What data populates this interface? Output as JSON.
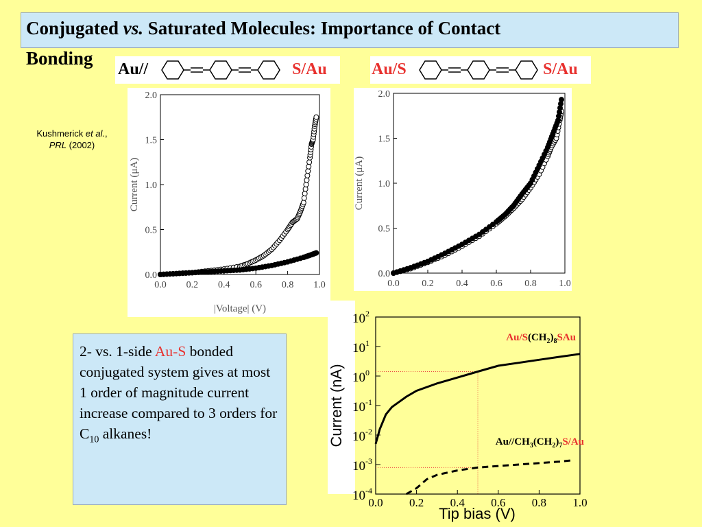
{
  "title": {
    "line1": "Conjugated  vs. Saturated Molecules: Importance of Contact",
    "line1_pre": "Conjugated ",
    "line1_em": "vs.",
    "line1_post": " Saturated Molecules: Importance of Contact",
    "line2": "Bonding"
  },
  "molecules": {
    "left": {
      "left_label": "Au//",
      "right_label": "S/Au"
    },
    "right": {
      "left_label": "Au/S",
      "right_label": "S/Au"
    }
  },
  "citation": {
    "authors_pre": "Kushmerick ",
    "authors_em1": "et al.",
    "sep": ", ",
    "journal": "PRL",
    "year": " (2002)"
  },
  "text_box": {
    "line_pre": "2- vs. 1-side ",
    "highlight": "Au-S",
    "rest": "bonded conjugated system gives at most 1 order of magnitude current increase compared to 3 orders for C",
    "sub": "10",
    "tail": " alkanes!"
  },
  "colors": {
    "background": "#ffff99",
    "title_box": "#cce8f7",
    "accent_red": "#e8312e"
  },
  "chart_data": [
    {
      "type": "scatter",
      "title": "",
      "xlabel": "|Voltage| (V)",
      "ylabel": "Current (μA)",
      "xlim": [
        0,
        1.0
      ],
      "ylim": [
        0,
        2.0
      ],
      "xticks": [
        "0.0",
        "0.2",
        "0.4",
        "0.6",
        "0.8",
        "1.0"
      ],
      "yticks": [
        "0.0",
        "0.5",
        "1.0",
        "1.5",
        "2.0"
      ],
      "series": [
        {
          "marker": "open",
          "x": [
            0.0,
            0.1,
            0.2,
            0.3,
            0.4,
            0.5,
            0.55,
            0.6,
            0.65,
            0.7,
            0.75,
            0.8,
            0.83,
            0.86,
            0.88,
            0.9,
            0.92,
            0.94,
            0.95,
            0.96,
            0.97,
            0.98
          ],
          "y": [
            0.0,
            0.01,
            0.02,
            0.04,
            0.06,
            0.09,
            0.12,
            0.16,
            0.21,
            0.28,
            0.38,
            0.5,
            0.58,
            0.62,
            0.7,
            0.8,
            1.05,
            1.3,
            1.45,
            1.5,
            1.65,
            1.75
          ]
        },
        {
          "marker": "filled",
          "x": [
            0.0,
            0.1,
            0.2,
            0.3,
            0.4,
            0.5,
            0.6,
            0.7,
            0.8,
            0.9,
            0.95,
            0.98
          ],
          "y": [
            0.0,
            0.01,
            0.02,
            0.03,
            0.04,
            0.05,
            0.07,
            0.1,
            0.14,
            0.19,
            0.22,
            0.24
          ]
        }
      ]
    },
    {
      "type": "scatter",
      "title": "",
      "xlabel": "",
      "ylabel": "Current (μA)",
      "xlim": [
        0,
        1.0
      ],
      "ylim": [
        0,
        2.0
      ],
      "xticks": [
        "0.0",
        "0.2",
        "0.4",
        "0.6",
        "0.8",
        "1.0"
      ],
      "yticks": [
        "0.0",
        "0.5",
        "1.0",
        "1.5",
        "2.0"
      ],
      "series": [
        {
          "marker": "open",
          "x": [
            0.0,
            0.1,
            0.2,
            0.3,
            0.4,
            0.5,
            0.6,
            0.65,
            0.7,
            0.75,
            0.8,
            0.85,
            0.9,
            0.92,
            0.95,
            0.97,
            0.98
          ],
          "y": [
            0.0,
            0.05,
            0.12,
            0.2,
            0.3,
            0.41,
            0.55,
            0.63,
            0.72,
            0.82,
            0.95,
            1.1,
            1.3,
            1.4,
            1.5,
            1.7,
            1.8
          ]
        },
        {
          "marker": "filled",
          "x": [
            0.0,
            0.1,
            0.2,
            0.3,
            0.4,
            0.5,
            0.6,
            0.65,
            0.7,
            0.75,
            0.8,
            0.85,
            0.9,
            0.93,
            0.96,
            0.98
          ],
          "y": [
            0.0,
            0.06,
            0.13,
            0.22,
            0.32,
            0.43,
            0.57,
            0.65,
            0.75,
            0.88,
            1.0,
            1.2,
            1.4,
            1.55,
            1.7,
            1.93
          ]
        }
      ]
    },
    {
      "type": "line",
      "title": "",
      "xlabel": "Tip bias (V)",
      "ylabel": "Current (nA)",
      "xlim": [
        0,
        1.0
      ],
      "ylim_log10": [
        -4,
        2
      ],
      "yscale": "log",
      "xticks": [
        "0.0",
        "0.2",
        "0.4",
        "0.6",
        "0.8",
        "1.0"
      ],
      "yticks_exp": [
        "2",
        "1",
        "0",
        "-1",
        "-2",
        "-3",
        "-4"
      ],
      "series": [
        {
          "name": "Au/S(CH2)8SAu",
          "name_parts": {
            "a": "Au/S",
            "b": "(CH",
            "b_sub": "2",
            "c": ")",
            "c_sub": "8",
            "d": "SAu"
          },
          "style": "solid",
          "x": [
            0.0,
            0.02,
            0.05,
            0.08,
            0.1,
            0.15,
            0.2,
            0.3,
            0.4,
            0.5,
            0.6,
            0.7,
            0.8,
            0.9,
            1.0
          ],
          "y": [
            -2.3,
            -1.8,
            -1.3,
            -1.05,
            -0.95,
            -0.7,
            -0.5,
            -0.25,
            -0.05,
            0.15,
            0.35,
            0.45,
            0.55,
            0.65,
            0.75
          ]
        },
        {
          "name": "Au//CH3(CH2)7S/Au",
          "name_parts": {
            "a": "Au//CH",
            "a_sub": "3",
            "b": "(CH",
            "b_sub": "2",
            "c": ")",
            "c_sub": "7",
            "d": "S/Au"
          },
          "style": "dashed",
          "x": [
            0.15,
            0.2,
            0.25,
            0.3,
            0.4,
            0.5,
            0.6,
            0.7,
            0.8,
            0.9,
            0.97
          ],
          "y": [
            -4.0,
            -3.8,
            -3.5,
            -3.35,
            -3.2,
            -3.1,
            -3.05,
            -3.0,
            -2.95,
            -2.9,
            -2.85
          ]
        }
      ]
    }
  ]
}
